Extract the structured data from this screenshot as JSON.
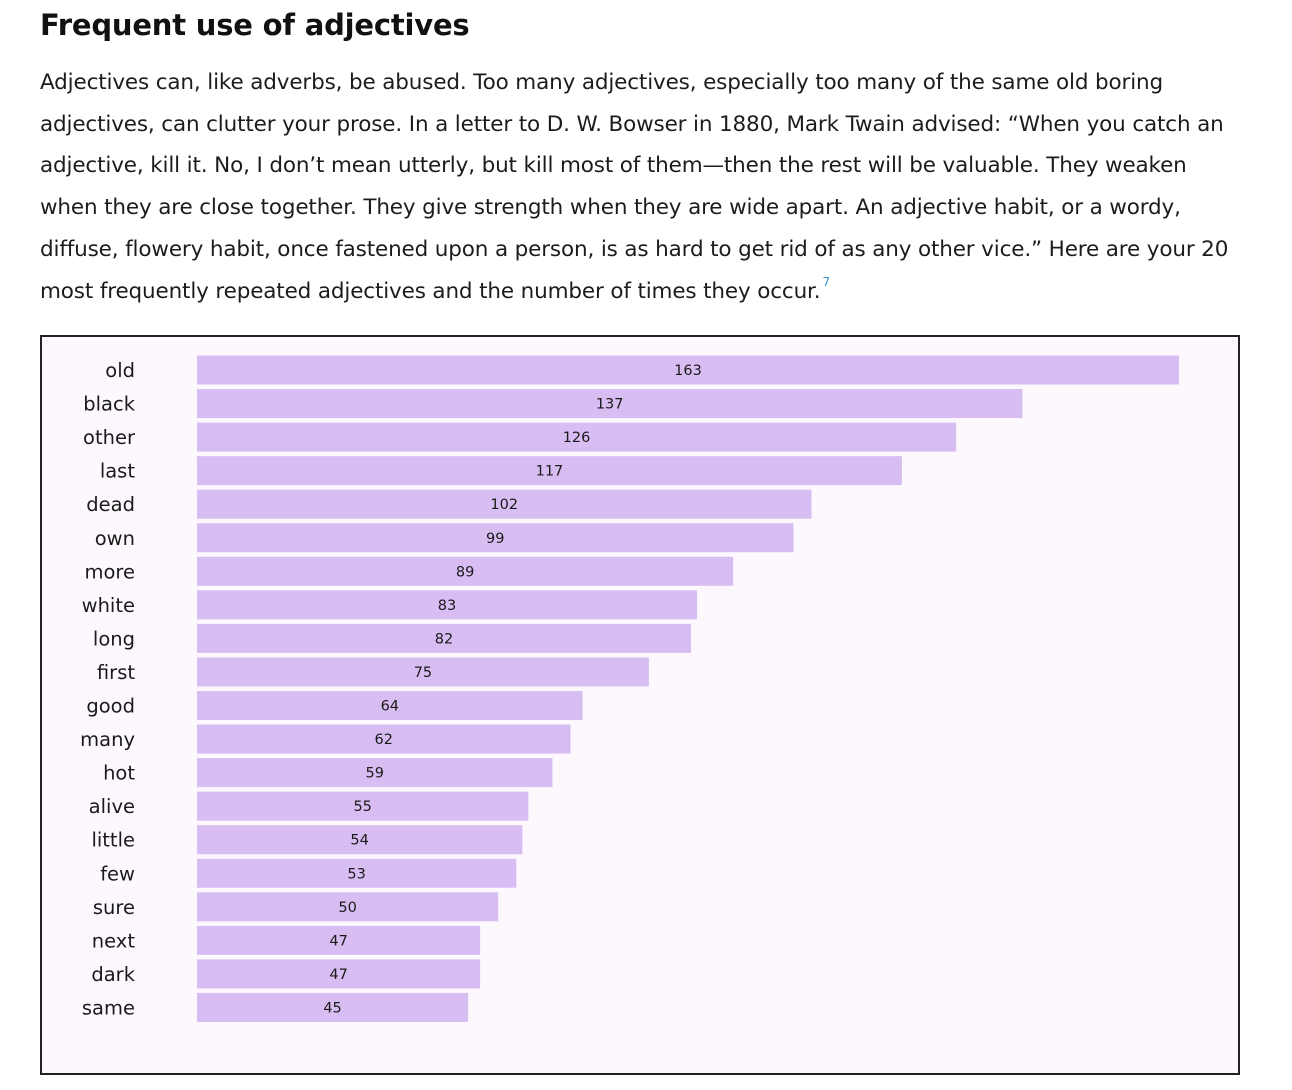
{
  "section": {
    "title": "Frequent use of adjectives",
    "paragraph": "Adjectives can, like adverbs, be abused. Too many adjectives, especially too many of the same old boring adjectives, can clutter your prose. In a letter to D. W. Bowser in 1880, Mark Twain advised: “When you catch an adjective, kill it. No, I don’t mean utterly, but kill most of them—then the rest will be valuable. They weaken when they are close together. They give strength when they are wide apart. An adjective habit, or a wordy, diffuse, flowery habit, once fastened upon a person, is as hard to get rid of as any other vice.” Here are your 20 most frequently repeated adjectives and the number of times they occur.",
    "footnote": "7"
  },
  "chart_data": {
    "type": "bar",
    "orientation": "horizontal",
    "categories": [
      "old",
      "black",
      "other",
      "last",
      "dead",
      "own",
      "more",
      "white",
      "long",
      "first",
      "good",
      "many",
      "hot",
      "alive",
      "little",
      "few",
      "sure",
      "next",
      "dark",
      "same"
    ],
    "values": [
      163,
      137,
      126,
      117,
      102,
      99,
      89,
      83,
      82,
      75,
      64,
      62,
      59,
      55,
      54,
      53,
      50,
      47,
      47,
      45
    ],
    "xlim": [
      0,
      163
    ],
    "grid": false,
    "legend": "none",
    "bar_color": "#d7bdf2",
    "background_color": "#fcf8fe"
  }
}
